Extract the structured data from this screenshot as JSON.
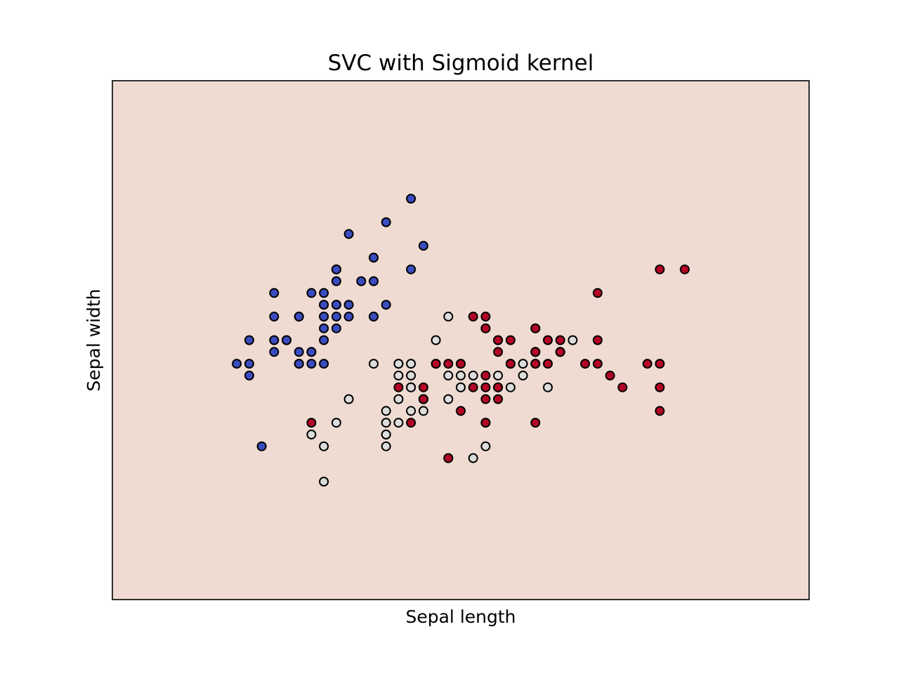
{
  "chart_data": {
    "type": "scatter",
    "title": "SVC with Sigmoid kernel",
    "xlabel": "Sepal length",
    "ylabel": "Sepal width",
    "xlim": [
      3.3,
      8.9
    ],
    "ylim": [
      1.0,
      5.4
    ],
    "xticks": "none",
    "yticks": "none",
    "grid": false,
    "background_color": "#efdbd1",
    "marker_edge_color": "#000000",
    "series": [
      {
        "color": "#3b4cc0",
        "points": [
          [
            5.1,
            3.5
          ],
          [
            4.9,
            3.0
          ],
          [
            4.7,
            3.2
          ],
          [
            4.6,
            3.1
          ],
          [
            5.0,
            3.6
          ],
          [
            5.4,
            3.9
          ],
          [
            4.6,
            3.4
          ],
          [
            5.0,
            3.4
          ],
          [
            4.4,
            2.9
          ],
          [
            4.9,
            3.1
          ],
          [
            5.4,
            3.7
          ],
          [
            4.8,
            3.4
          ],
          [
            4.8,
            3.0
          ],
          [
            4.3,
            3.0
          ],
          [
            5.8,
            4.0
          ],
          [
            5.7,
            4.4
          ],
          [
            5.4,
            3.9
          ],
          [
            5.1,
            3.5
          ],
          [
            5.7,
            3.8
          ],
          [
            5.1,
            3.8
          ],
          [
            5.4,
            3.4
          ],
          [
            5.1,
            3.7
          ],
          [
            4.6,
            3.6
          ],
          [
            5.1,
            3.3
          ],
          [
            4.8,
            3.4
          ],
          [
            5.0,
            3.0
          ],
          [
            5.0,
            3.4
          ],
          [
            5.2,
            3.5
          ],
          [
            5.2,
            3.4
          ],
          [
            4.7,
            3.2
          ],
          [
            4.8,
            3.1
          ],
          [
            5.4,
            3.4
          ],
          [
            5.2,
            4.1
          ],
          [
            5.5,
            4.2
          ],
          [
            4.9,
            3.1
          ],
          [
            5.0,
            3.2
          ],
          [
            5.5,
            3.5
          ],
          [
            4.9,
            3.6
          ],
          [
            4.4,
            3.0
          ],
          [
            5.1,
            3.4
          ],
          [
            5.0,
            3.5
          ],
          [
            4.5,
            2.3
          ],
          [
            4.4,
            3.2
          ],
          [
            5.0,
            3.5
          ],
          [
            5.1,
            3.8
          ],
          [
            4.8,
            3.0
          ],
          [
            5.1,
            3.8
          ],
          [
            4.6,
            3.2
          ],
          [
            5.3,
            3.7
          ],
          [
            5.0,
            3.3
          ]
        ]
      },
      {
        "color": "#dddcdc",
        "points": [
          [
            6.4,
            3.2
          ],
          [
            6.9,
            3.1
          ],
          [
            5.5,
            2.3
          ],
          [
            6.5,
            2.8
          ],
          [
            5.7,
            2.8
          ],
          [
            6.3,
            3.3
          ],
          [
            4.9,
            2.4
          ],
          [
            6.6,
            2.9
          ],
          [
            5.2,
            2.7
          ],
          [
            5.0,
            2.0
          ],
          [
            5.9,
            3.0
          ],
          [
            6.0,
            2.2
          ],
          [
            6.1,
            2.9
          ],
          [
            5.6,
            2.9
          ],
          [
            6.7,
            3.1
          ],
          [
            5.6,
            3.0
          ],
          [
            5.8,
            2.7
          ],
          [
            6.2,
            2.2
          ],
          [
            5.6,
            2.5
          ],
          [
            5.9,
            3.2
          ],
          [
            6.1,
            2.8
          ],
          [
            6.3,
            2.5
          ],
          [
            6.1,
            2.8
          ],
          [
            6.4,
            2.9
          ],
          [
            6.6,
            3.0
          ],
          [
            6.8,
            2.8
          ],
          [
            6.7,
            3.0
          ],
          [
            6.0,
            2.9
          ],
          [
            5.7,
            2.6
          ],
          [
            5.5,
            2.4
          ],
          [
            5.5,
            2.4
          ],
          [
            5.8,
            2.7
          ],
          [
            6.0,
            2.7
          ],
          [
            5.4,
            3.0
          ],
          [
            6.0,
            3.4
          ],
          [
            6.7,
            3.1
          ],
          [
            6.3,
            2.3
          ],
          [
            5.6,
            3.0
          ],
          [
            5.5,
            2.5
          ],
          [
            5.5,
            2.6
          ],
          [
            6.1,
            3.0
          ],
          [
            5.8,
            2.6
          ],
          [
            5.0,
            2.3
          ],
          [
            5.6,
            2.7
          ],
          [
            5.7,
            3.0
          ],
          [
            5.7,
            2.9
          ],
          [
            6.2,
            2.9
          ],
          [
            5.1,
            2.5
          ],
          [
            5.7,
            2.8
          ],
          [
            7.0,
            3.2
          ]
        ]
      },
      {
        "color": "#b40426",
        "points": [
          [
            6.3,
            3.3
          ],
          [
            5.8,
            2.7
          ],
          [
            7.1,
            3.0
          ],
          [
            6.3,
            2.9
          ],
          [
            6.5,
            3.0
          ],
          [
            7.6,
            3.0
          ],
          [
            4.9,
            2.5
          ],
          [
            7.3,
            2.9
          ],
          [
            6.7,
            2.5
          ],
          [
            7.2,
            3.6
          ],
          [
            6.5,
            3.2
          ],
          [
            6.4,
            2.7
          ],
          [
            6.8,
            3.0
          ],
          [
            5.7,
            2.5
          ],
          [
            5.8,
            2.8
          ],
          [
            6.4,
            3.2
          ],
          [
            6.5,
            3.0
          ],
          [
            7.7,
            3.8
          ],
          [
            7.7,
            2.6
          ],
          [
            6.0,
            2.2
          ],
          [
            6.9,
            3.2
          ],
          [
            5.6,
            2.8
          ],
          [
            7.7,
            2.8
          ],
          [
            6.3,
            2.7
          ],
          [
            6.7,
            3.3
          ],
          [
            7.2,
            3.2
          ],
          [
            6.2,
            2.8
          ],
          [
            6.1,
            3.0
          ],
          [
            6.4,
            2.8
          ],
          [
            7.2,
            3.0
          ],
          [
            7.4,
            2.8
          ],
          [
            7.9,
            3.8
          ],
          [
            6.4,
            2.8
          ],
          [
            6.3,
            2.8
          ],
          [
            6.1,
            2.6
          ],
          [
            7.7,
            3.0
          ],
          [
            6.3,
            3.4
          ],
          [
            6.4,
            3.1
          ],
          [
            6.0,
            3.0
          ],
          [
            6.9,
            3.1
          ],
          [
            6.7,
            3.1
          ],
          [
            6.9,
            3.1
          ],
          [
            5.8,
            2.7
          ],
          [
            6.8,
            3.2
          ],
          [
            6.7,
            3.3
          ],
          [
            6.7,
            3.0
          ],
          [
            6.3,
            2.5
          ],
          [
            6.5,
            3.0
          ],
          [
            6.2,
            3.4
          ],
          [
            5.9,
            3.0
          ]
        ]
      }
    ]
  }
}
